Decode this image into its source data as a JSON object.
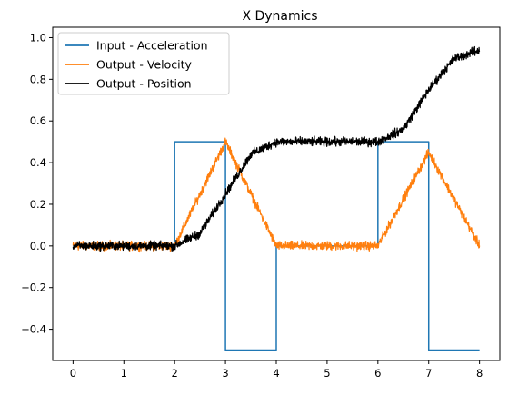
{
  "chart_data": {
    "type": "line",
    "title": "X Dynamics",
    "xlabel": "",
    "ylabel": "",
    "xlim": [
      -0.4,
      8.4
    ],
    "ylim": [
      -0.55,
      1.05
    ],
    "x_ticks": [
      0,
      1,
      2,
      3,
      4,
      5,
      6,
      7,
      8
    ],
    "x_tick_labels": [
      "0",
      "1",
      "2",
      "3",
      "4",
      "5",
      "6",
      "7",
      "8"
    ],
    "y_ticks": [
      -0.4,
      -0.2,
      0.0,
      0.2,
      0.4,
      0.6,
      0.8,
      1.0
    ],
    "y_tick_labels": [
      "−0.4",
      "−0.2",
      "0.0",
      "0.2",
      "0.4",
      "0.6",
      "0.8",
      "1.0"
    ],
    "grid": false,
    "legend_position": "top-left",
    "series": [
      {
        "name": "Input - Acceleration",
        "color": "#1f77b4",
        "noise": 0,
        "x": [
          0,
          2,
          2,
          3,
          3,
          4,
          4,
          6,
          6,
          7,
          7,
          8
        ],
        "y": [
          0,
          0,
          0.5,
          0.5,
          -0.5,
          -0.5,
          0,
          0,
          0.5,
          0.5,
          -0.5,
          -0.5
        ]
      },
      {
        "name": "Output - Velocity",
        "color": "#ff7f0e",
        "noise": 0.018,
        "x": [
          0,
          2,
          3,
          4,
          6,
          7,
          8
        ],
        "y": [
          0,
          0,
          0.5,
          0,
          0,
          0.45,
          0
        ]
      },
      {
        "name": "Output - Position",
        "color": "#000000",
        "noise": 0.018,
        "x": [
          0,
          2,
          2.5,
          3,
          3.5,
          4,
          6,
          6.5,
          7,
          7.5,
          8
        ],
        "y": [
          0,
          0,
          0.06,
          0.25,
          0.44,
          0.5,
          0.5,
          0.56,
          0.75,
          0.9,
          0.94
        ]
      }
    ]
  }
}
